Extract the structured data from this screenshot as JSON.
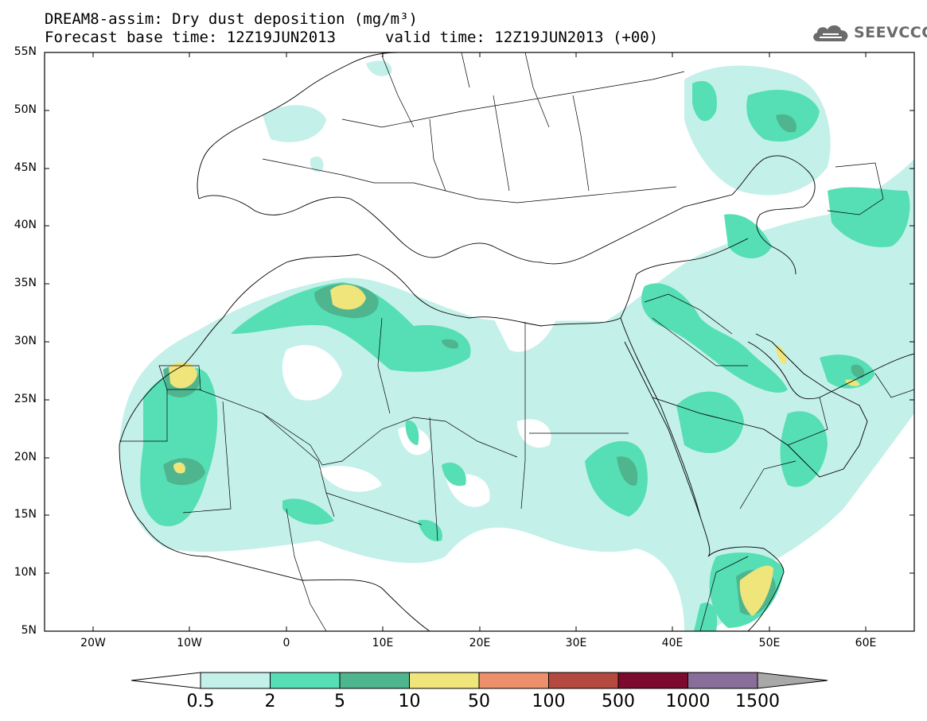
{
  "title": {
    "line1": "DREAM8-assim: Dry dust deposition (mg/m³)",
    "line2a": "Forecast base time: 12Z19JUN2013",
    "line2b": "valid time: 12Z19JUN2013 (+00)"
  },
  "logo": {
    "text": "SEEVCCC",
    "icon": "cloud-icon"
  },
  "map": {
    "lon_range": [
      -25,
      65
    ],
    "lat_range": [
      5,
      55
    ],
    "lat_labels": [
      "5N",
      "10N",
      "15N",
      "20N",
      "25N",
      "30N",
      "35N",
      "40N",
      "45N",
      "50N",
      "55N"
    ],
    "lon_labels": [
      "20W",
      "10W",
      "0",
      "10E",
      "20E",
      "30E",
      "40E",
      "50E",
      "60E"
    ]
  },
  "colorbar": {
    "labels": [
      "0.5",
      "2",
      "5",
      "10",
      "50",
      "100",
      "500",
      "1000",
      "1500"
    ],
    "colors": [
      "#c4f0ea",
      "#56dfb4",
      "#4fb58f",
      "#f0e57a",
      "#ec8f6b",
      "#b44a3f",
      "#7c0a2f",
      "#8a6e9a"
    ],
    "under_color": "#ffffff",
    "over_color": "#a8a8a8"
  }
}
